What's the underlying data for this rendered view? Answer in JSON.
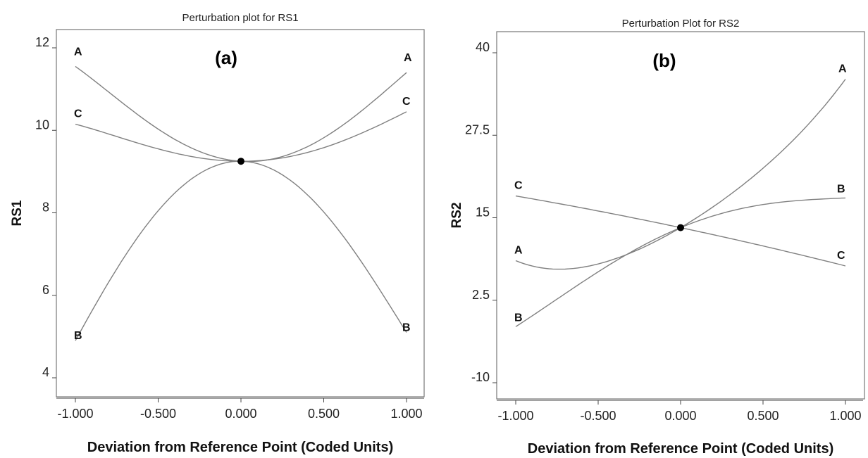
{
  "chart_data": [
    {
      "type": "line",
      "panel_label": "(a)",
      "title": "Perturbation plot for RS1",
      "xlabel": "Deviation from Reference Point (Coded Units)",
      "ylabel": "RS1",
      "xlim": [
        -1.0,
        1.0
      ],
      "ylim": [
        4,
        12
      ],
      "xticks": [
        "-1.000",
        "-0.500",
        "0.000",
        "0.500",
        "1.000"
      ],
      "yticks": [
        "4",
        "6",
        "8",
        "10",
        "12"
      ],
      "reference_point": {
        "x": 0.0,
        "y": 9.25
      },
      "series": [
        {
          "name": "A",
          "x": [
            -1.0,
            -0.5,
            0.0,
            0.5,
            1.0
          ],
          "y": [
            11.55,
            10.03,
            9.25,
            9.82,
            11.4
          ]
        },
        {
          "name": "B",
          "x": [
            -1.0,
            -0.5,
            0.0,
            0.5,
            1.0
          ],
          "y": [
            4.9,
            8.05,
            9.25,
            8.02,
            5.1
          ]
        },
        {
          "name": "C",
          "x": [
            -1.0,
            -0.5,
            0.0,
            0.5,
            1.0
          ],
          "y": [
            10.15,
            9.55,
            9.25,
            9.58,
            10.45
          ]
        }
      ]
    },
    {
      "type": "line",
      "panel_label": "(b)",
      "title": "Perturbation Plot for RS2",
      "xlabel": "Deviation from Reference Point (Coded Units)",
      "ylabel": "RS2",
      "xlim": [
        -1.0,
        1.0
      ],
      "ylim": [
        -10,
        40
      ],
      "xticks": [
        "-1.000",
        "-0.500",
        "0.000",
        "0.500",
        "1.000"
      ],
      "yticks": [
        "-10",
        "2.5",
        "15",
        "27.5",
        "40"
      ],
      "reference_point": {
        "x": 0.0,
        "y": 13.5
      },
      "series": [
        {
          "name": "A",
          "x": [
            -1.0,
            -0.5,
            0.0,
            0.5,
            1.0
          ],
          "y": [
            8.5,
            8.0,
            13.5,
            22.5,
            36.0
          ]
        },
        {
          "name": "B",
          "x": [
            -1.0,
            -0.5,
            0.0,
            0.5,
            1.0
          ],
          "y": [
            -1.5,
            6.8,
            13.5,
            17.0,
            18.0
          ]
        },
        {
          "name": "C",
          "x": [
            -1.0,
            0.0,
            1.0
          ],
          "y": [
            18.3,
            13.5,
            7.7
          ]
        }
      ]
    }
  ]
}
